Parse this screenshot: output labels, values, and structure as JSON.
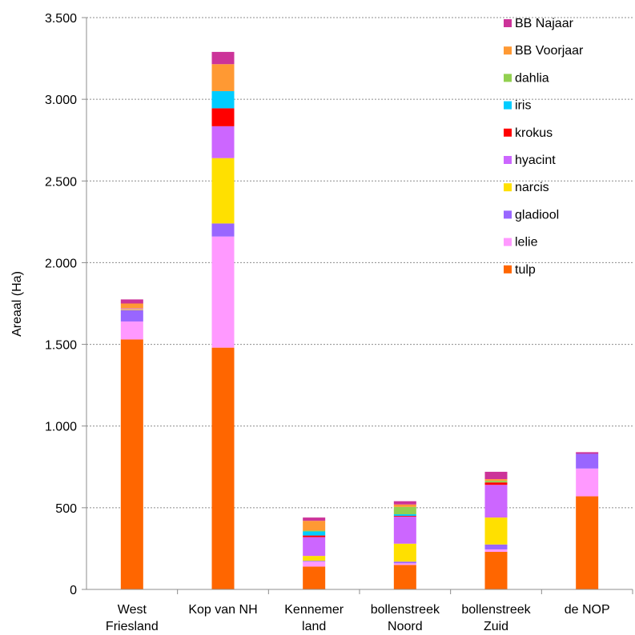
{
  "chart_data": {
    "type": "bar",
    "stacked": true,
    "ylabel": "Areaal (Ha)",
    "xlabel": "",
    "ylim": [
      0,
      3500
    ],
    "yticks": [
      0,
      500,
      1000,
      1500,
      2000,
      2500,
      3000,
      3500
    ],
    "ytick_labels": [
      "0",
      "500",
      "1.000",
      "1.500",
      "2.000",
      "2.500",
      "3.000",
      "3.500"
    ],
    "grid": "horizontal-dotted",
    "legend_position": "top-right",
    "categories": [
      [
        "West",
        "Friesland"
      ],
      [
        "Kop van NH"
      ],
      [
        "Kennemer",
        "land"
      ],
      [
        "bollenstreek",
        "Noord"
      ],
      [
        "bollenstreek",
        "Zuid"
      ],
      [
        "de NOP"
      ]
    ],
    "series": [
      {
        "name": "tulp",
        "color": "#FF6600",
        "values": [
          1530,
          1480,
          140,
          150,
          230,
          570
        ]
      },
      {
        "name": "lelie",
        "color": "#FF99FF",
        "values": [
          110,
          680,
          30,
          10,
          15,
          170
        ]
      },
      {
        "name": "gladiool",
        "color": "#9966FF",
        "values": [
          70,
          80,
          5,
          10,
          30,
          90
        ]
      },
      {
        "name": "narcis",
        "color": "#FFE000",
        "values": [
          5,
          400,
          30,
          110,
          165,
          0
        ]
      },
      {
        "name": "hyacint",
        "color": "#CC66FF",
        "values": [
          5,
          195,
          115,
          165,
          200,
          0
        ]
      },
      {
        "name": "krokus",
        "color": "#FF0000",
        "values": [
          0,
          110,
          10,
          5,
          15,
          0
        ]
      },
      {
        "name": "iris",
        "color": "#00CCFF",
        "values": [
          0,
          105,
          25,
          10,
          0,
          0
        ]
      },
      {
        "name": "dahlia",
        "color": "#92D050",
        "values": [
          0,
          0,
          5,
          45,
          10,
          0
        ]
      },
      {
        "name": "BB Voorjaar",
        "color": "#FF9933",
        "values": [
          30,
          165,
          60,
          15,
          10,
          0
        ]
      },
      {
        "name": "BB Najaar",
        "color": "#CC3399",
        "values": [
          25,
          75,
          20,
          20,
          45,
          10
        ]
      }
    ]
  }
}
